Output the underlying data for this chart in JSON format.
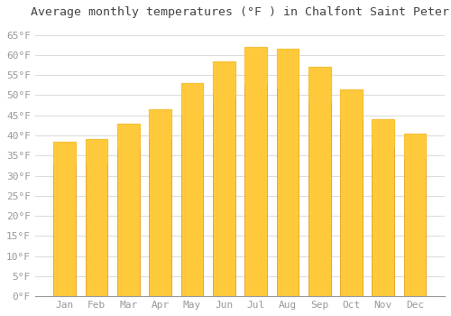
{
  "title": "Average monthly temperatures (°F ) in Chalfont Saint Peter",
  "months": [
    "Jan",
    "Feb",
    "Mar",
    "Apr",
    "May",
    "Jun",
    "Jul",
    "Aug",
    "Sep",
    "Oct",
    "Nov",
    "Dec"
  ],
  "values": [
    38.5,
    39.0,
    43.0,
    46.5,
    53.0,
    58.5,
    62.0,
    61.5,
    57.0,
    51.5,
    44.0,
    40.5
  ],
  "bar_color_top": "#FFC93C",
  "bar_color_bottom": "#F5A800",
  "bar_edge_color": "#E09000",
  "ylim": [
    0,
    68
  ],
  "yticks": [
    0,
    5,
    10,
    15,
    20,
    25,
    30,
    35,
    40,
    45,
    50,
    55,
    60,
    65
  ],
  "ytick_labels": [
    "0°F",
    "5°F",
    "10°F",
    "15°F",
    "20°F",
    "25°F",
    "30°F",
    "35°F",
    "40°F",
    "45°F",
    "50°F",
    "55°F",
    "60°F",
    "65°F"
  ],
  "background_color": "#FFFFFF",
  "grid_color": "#DDDDDD",
  "title_fontsize": 9.5,
  "tick_fontsize": 8,
  "tick_color": "#999999",
  "font_family": "monospace",
  "bar_width": 0.7
}
